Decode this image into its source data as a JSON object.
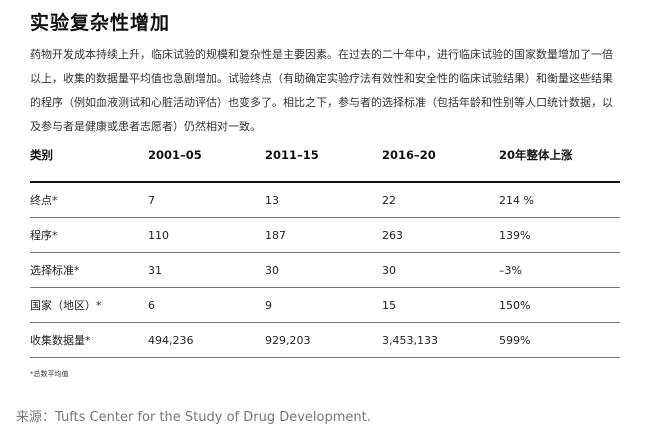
{
  "title": "实验复杂性增加",
  "intro": "药物开发成本持续上升，临床试验的规模和复杂性是主要因素。在过去的二十年中，进行临床试验的国家数量增加了一倍以上，收集的数据量平均值也急剧增加。试验终点（有助确定实验疗法有效性和安全性的临床试验结果）和衡量这些结果的程序（例如血液测试和心脏活动评估）也变多了。相比之下，参与者的选择标准（包括年龄和性别等人口统计数据，以及参与者是健康或患者志愿者）仍然相对一致。",
  "table": {
    "headers": [
      "类别",
      "2001–05",
      "2011–15",
      "2016–20",
      "20年整体上涨"
    ],
    "rows": [
      [
        "终点*",
        "7",
        "13",
        "22",
        "214 %"
      ],
      [
        "程序*",
        "110",
        "187",
        "263",
        "139%"
      ],
      [
        "选择标准*",
        "31",
        "30",
        "30",
        "–3%"
      ],
      [
        "国家（地区）*",
        "6",
        "9",
        "15",
        "150%"
      ],
      [
        "收集数据量*",
        "494,236",
        "929,203",
        "3,453,133",
        "599%"
      ]
    ]
  },
  "footnote": "*总数平均值",
  "source": "来源：Tufts Center for the Study of Drug Development."
}
